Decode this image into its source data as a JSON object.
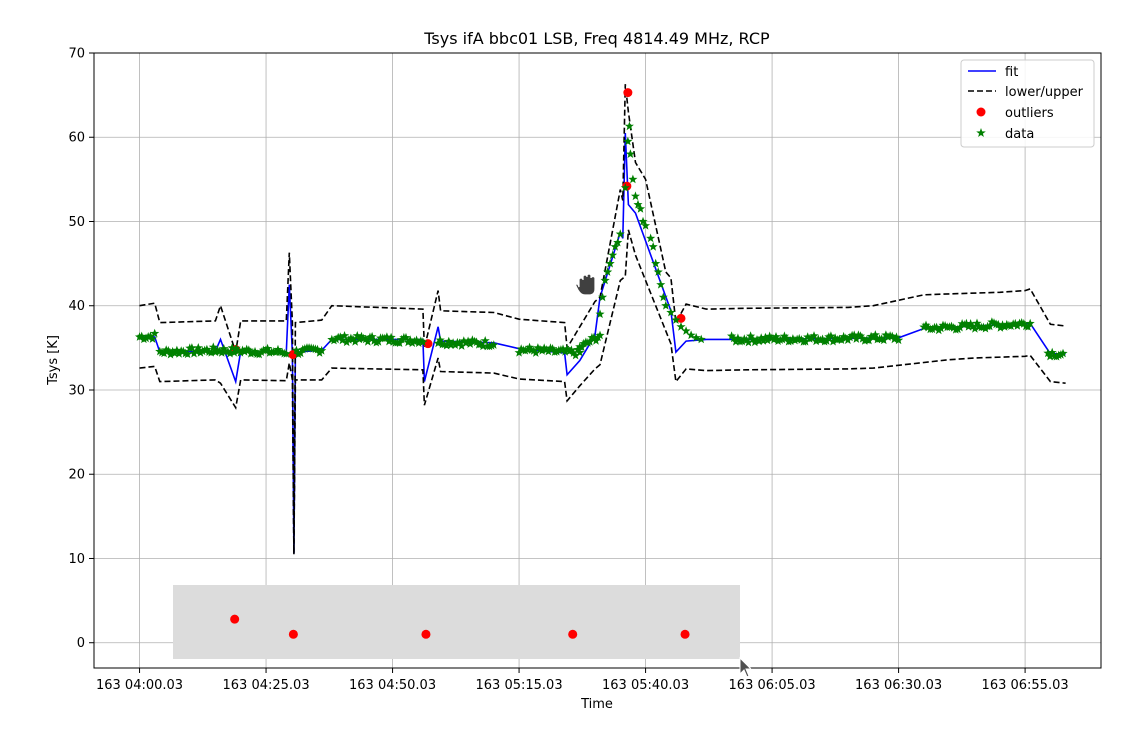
{
  "chart_data": {
    "type": "line",
    "title": "Tsys ifA bbc01 LSB, Freq 4814.49 MHz, RCP",
    "xlabel": "Time",
    "ylabel": "Tsys [K]",
    "ylim": [
      -3,
      70
    ],
    "grid": true,
    "legend_placement": "top-right",
    "xlim_minutes": [
      -9,
      190
    ],
    "x_ticks": [
      {
        "value": 0,
        "label": "163 04:00.03"
      },
      {
        "value": 25,
        "label": "163 04:25.03"
      },
      {
        "value": 50,
        "label": "163 04:50.03"
      },
      {
        "value": 75,
        "label": "163 05:15.03"
      },
      {
        "value": 100,
        "label": "163 05:40.03"
      },
      {
        "value": 125,
        "label": "163 06:05.03"
      },
      {
        "value": 150,
        "label": "163 06:30.03"
      },
      {
        "value": 175,
        "label": "163 06:55.03"
      }
    ],
    "y_ticks": [
      0,
      10,
      20,
      30,
      40,
      50,
      60,
      70
    ],
    "legend": [
      {
        "label": "fit",
        "color": "#0000ff",
        "style": "solid-line"
      },
      {
        "label": "lower/upper",
        "color": "#000000",
        "style": "dashed-line"
      },
      {
        "label": "outliers",
        "color": "#ff0000",
        "style": "circle"
      },
      {
        "label": "data",
        "color": "#008000",
        "style": "star"
      }
    ],
    "series": [
      {
        "name": "fit",
        "color": "#0000ff",
        "points": [
          [
            0,
            36.3
          ],
          [
            3,
            36.3
          ],
          [
            4,
            34.5
          ],
          [
            15,
            34.6
          ],
          [
            16,
            36.0
          ],
          [
            19,
            31.0
          ],
          [
            20,
            34.6
          ],
          [
            29,
            34.5
          ],
          [
            29.6,
            42.5
          ],
          [
            30.2,
            34.3
          ],
          [
            30.5,
            10.6
          ],
          [
            30.8,
            34.5
          ],
          [
            36,
            34.7
          ],
          [
            38,
            36.0
          ],
          [
            56,
            36.0
          ],
          [
            56.3,
            31.0
          ],
          [
            59,
            37.5
          ],
          [
            59.5,
            35.8
          ],
          [
            70,
            35.6
          ],
          [
            75,
            34.9
          ],
          [
            84,
            34.4
          ],
          [
            84.5,
            31.8
          ],
          [
            87,
            33.5
          ],
          [
            90,
            36.5
          ],
          [
            91,
            41.0
          ],
          [
            95,
            48.7
          ],
          [
            95.5,
            48.0
          ],
          [
            96,
            60.5
          ],
          [
            96.6,
            52.0
          ],
          [
            98,
            51.0
          ],
          [
            105,
            39.4
          ],
          [
            106,
            34.5
          ],
          [
            108,
            35.8
          ],
          [
            112,
            36.0
          ],
          [
            120,
            36.0
          ],
          [
            150,
            36.2
          ],
          [
            155,
            37.3
          ],
          [
            172,
            37.8
          ],
          [
            176,
            37.9
          ],
          [
            180,
            34.3
          ],
          [
            183,
            34.3
          ]
        ]
      },
      {
        "name": "lower",
        "color": "#000000",
        "points": [
          [
            0,
            32.6
          ],
          [
            3,
            32.8
          ],
          [
            4,
            31.0
          ],
          [
            15,
            31.2
          ],
          [
            16,
            30.8
          ],
          [
            19,
            27.9
          ],
          [
            20,
            31.2
          ],
          [
            29,
            31.1
          ],
          [
            29.6,
            33.2
          ],
          [
            30.2,
            31.2
          ],
          [
            30.5,
            10.5
          ],
          [
            30.8,
            31.2
          ],
          [
            36,
            31.2
          ],
          [
            38,
            32.6
          ],
          [
            56,
            32.4
          ],
          [
            56.3,
            28.2
          ],
          [
            59,
            33.8
          ],
          [
            59.5,
            32.2
          ],
          [
            70,
            32.0
          ],
          [
            75,
            31.3
          ],
          [
            84,
            31.0
          ],
          [
            84.5,
            28.7
          ],
          [
            87,
            30.5
          ],
          [
            90,
            32.5
          ],
          [
            91,
            33.0
          ],
          [
            95,
            43.0
          ],
          [
            96,
            43.5
          ],
          [
            96.6,
            49.0
          ],
          [
            98,
            46.0
          ],
          [
            100,
            43.0
          ],
          [
            105,
            35.5
          ],
          [
            106,
            31.0
          ],
          [
            108,
            32.5
          ],
          [
            112,
            32.3
          ],
          [
            120,
            32.4
          ],
          [
            140,
            32.5
          ],
          [
            145,
            32.6
          ],
          [
            160,
            33.6
          ],
          [
            165,
            33.8
          ],
          [
            175,
            34.0
          ],
          [
            176,
            34.1
          ],
          [
            180,
            31.0
          ],
          [
            183,
            30.8
          ]
        ]
      },
      {
        "name": "upper",
        "color": "#000000",
        "points": [
          [
            0,
            40.0
          ],
          [
            3,
            40.3
          ],
          [
            4,
            38.0
          ],
          [
            15,
            38.2
          ],
          [
            16,
            40.0
          ],
          [
            19,
            34.5
          ],
          [
            20,
            38.2
          ],
          [
            29,
            38.2
          ],
          [
            29.6,
            46.3
          ],
          [
            30.2,
            38.0
          ],
          [
            30.5,
            10.6
          ],
          [
            30.8,
            38.0
          ],
          [
            36,
            38.3
          ],
          [
            38,
            40.0
          ],
          [
            56,
            39.6
          ],
          [
            56.3,
            35.0
          ],
          [
            59,
            41.8
          ],
          [
            59.5,
            39.4
          ],
          [
            70,
            39.2
          ],
          [
            75,
            38.4
          ],
          [
            84,
            38.0
          ],
          [
            84.5,
            35.0
          ],
          [
            87,
            37.5
          ],
          [
            90,
            40.5
          ],
          [
            91,
            41.0
          ],
          [
            95,
            53.8
          ],
          [
            95.5,
            52.5
          ],
          [
            96,
            66.3
          ],
          [
            96.6,
            63.0
          ],
          [
            98,
            57.0
          ],
          [
            100,
            55.0
          ],
          [
            104,
            44.0
          ],
          [
            105,
            43.3
          ],
          [
            106,
            38.0
          ],
          [
            108,
            40.2
          ],
          [
            112,
            39.6
          ],
          [
            120,
            39.7
          ],
          [
            140,
            39.8
          ],
          [
            145,
            40.0
          ],
          [
            155,
            41.3
          ],
          [
            160,
            41.4
          ],
          [
            170,
            41.6
          ],
          [
            175,
            41.8
          ],
          [
            176,
            42.0
          ],
          [
            180,
            37.8
          ],
          [
            183,
            37.6
          ]
        ]
      },
      {
        "name": "outliers",
        "color": "#ff0000",
        "points": [
          [
            19,
            34.8
          ],
          [
            30.3,
            34.2
          ],
          [
            57,
            35.5
          ],
          [
            96.5,
            65.3
          ],
          [
            96.3,
            54.2
          ],
          [
            107,
            38.5
          ]
        ]
      },
      {
        "name": "outliers",
        "color": "#ff0000",
        "points": [
          [
            18.8,
            2.8
          ],
          [
            30.4,
            1.0
          ],
          [
            56.6,
            1.0
          ],
          [
            85.6,
            1.0
          ],
          [
            107.8,
            1.0
          ]
        ]
      },
      {
        "name": "data",
        "color": "#008000",
        "segments": [
          {
            "x": [
              0,
              3
            ],
            "y": [
              36.3,
              36.4
            ]
          },
          {
            "x": [
              4,
              15
            ],
            "y": [
              34.5,
              34.7
            ]
          },
          {
            "x": [
              15,
              29
            ],
            "y": [
              34.7,
              34.5
            ]
          },
          {
            "x": [
              31,
              36
            ],
            "y": [
              34.5,
              34.8
            ]
          },
          {
            "x": [
              38,
              56
            ],
            "y": [
              36.1,
              35.9
            ]
          },
          {
            "x": [
              59,
              70
            ],
            "y": [
              35.7,
              35.5
            ]
          },
          {
            "x": [
              75,
              87
            ],
            "y": [
              34.8,
              34.4
            ]
          },
          {
            "x": [
              87,
              91
            ],
            "y": [
              35.0,
              36.5
            ]
          }
        ],
        "peak_rise": [
          [
            91,
            39
          ],
          [
            91.5,
            41
          ],
          [
            92,
            43
          ],
          [
            92.5,
            44
          ],
          [
            93,
            45
          ],
          [
            93.5,
            46
          ],
          [
            94,
            47
          ],
          [
            94.5,
            47.5
          ],
          [
            95,
            48.5
          ],
          [
            96,
            54
          ],
          [
            96.5,
            59.5
          ],
          [
            96.8,
            61.3
          ]
        ],
        "peak_decay": [
          [
            97,
            58
          ],
          [
            97.5,
            55
          ],
          [
            98,
            53
          ],
          [
            98.5,
            52
          ],
          [
            99,
            51.5
          ],
          [
            99.5,
            50
          ],
          [
            100,
            49.5
          ],
          [
            101,
            48
          ],
          [
            101.5,
            47
          ],
          [
            102,
            45
          ],
          [
            102.5,
            44
          ],
          [
            103,
            42.5
          ],
          [
            103.5,
            41
          ],
          [
            104,
            40
          ],
          [
            105,
            39.2
          ],
          [
            106,
            38.3
          ],
          [
            107,
            37.5
          ],
          [
            108,
            37.0
          ],
          [
            109,
            36.5
          ],
          [
            110,
            36.2
          ],
          [
            111,
            36.0
          ]
        ],
        "tail_segments": [
          {
            "x": [
              117,
              150
            ],
            "y": [
              36.0,
              36.2
            ]
          },
          {
            "x": [
              155,
              176
            ],
            "y": [
              37.3,
              37.9
            ]
          },
          {
            "x": [
              179.5,
              182.5
            ],
            "y": [
              34.4,
              34.2
            ]
          }
        ]
      }
    ]
  }
}
